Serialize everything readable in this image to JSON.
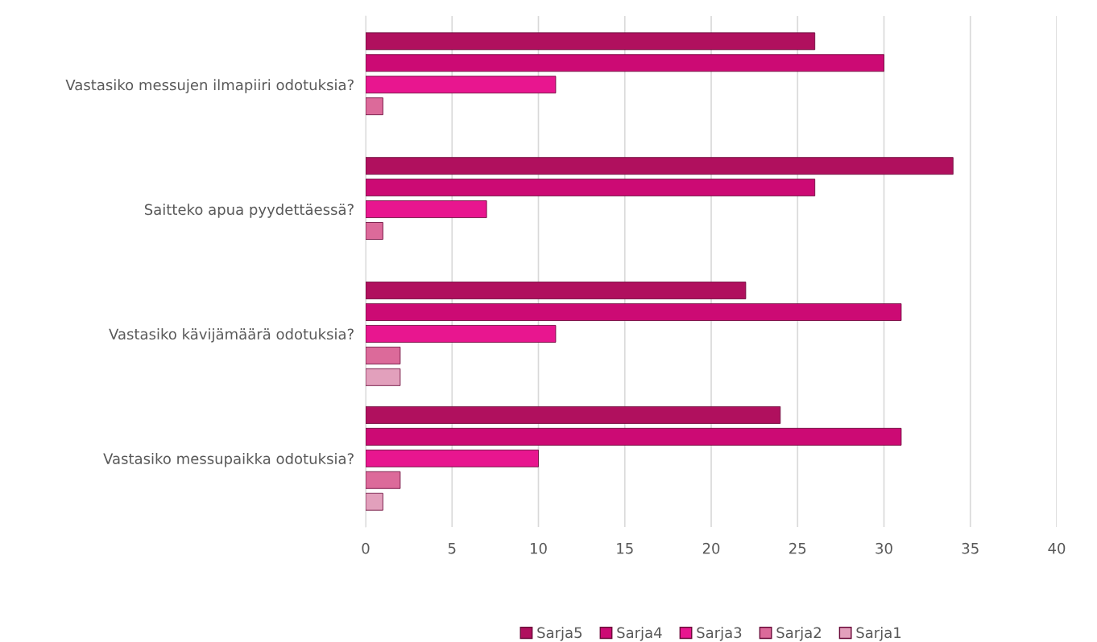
{
  "chart_data": {
    "type": "bar",
    "orientation": "horizontal",
    "categories": [
      "Vastasiko messujen ilmapiiri odotuksia?",
      "Saitteko apua pyydettäessä?",
      "Vastasiko kävijämäärä odotuksia?",
      "Vastasiko messupaikka odotuksia?"
    ],
    "series": [
      {
        "name": "Sarja5",
        "color": "#b0105e",
        "values": [
          26,
          34,
          22,
          24
        ]
      },
      {
        "name": "Sarja4",
        "color": "#cc0a74",
        "values": [
          30,
          26,
          31,
          31
        ]
      },
      {
        "name": "Sarja3",
        "color": "#e8168f",
        "values": [
          11,
          7,
          11,
          10
        ]
      },
      {
        "name": "Sarja2",
        "color": "#dc6a9a",
        "values": [
          1,
          1,
          2,
          2
        ]
      },
      {
        "name": "Sarja1",
        "color": "#e2a0bc",
        "values": [
          null,
          null,
          2,
          1
        ]
      }
    ],
    "xlim": [
      0,
      40
    ],
    "xticks": [
      0,
      5,
      10,
      15,
      20,
      25,
      30,
      35,
      40
    ],
    "grid": "x",
    "legend": "bottom"
  }
}
